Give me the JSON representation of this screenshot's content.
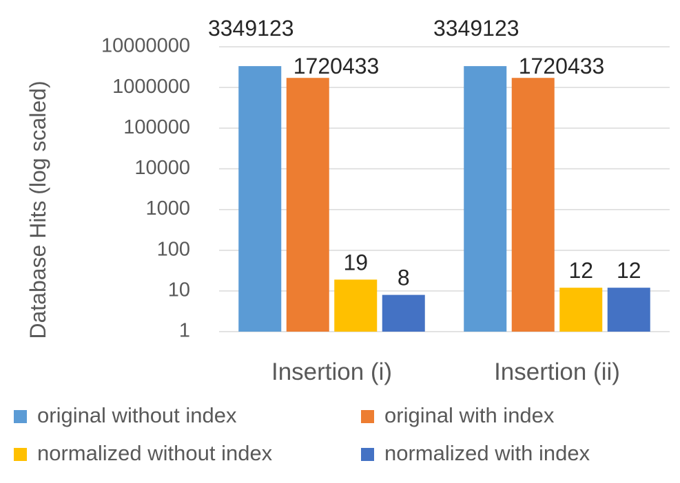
{
  "chart_data": {
    "type": "bar",
    "ylabel": "Database Hits (log scaled)",
    "yscale": "log",
    "ylim": [
      1,
      10000000
    ],
    "yticks": [
      "1",
      "10",
      "100",
      "1000",
      "10000",
      "100000",
      "1000000",
      "10000000"
    ],
    "grid": true,
    "legend_position": "bottom",
    "categories": [
      "Insertion (i)",
      "Insertion (ii)"
    ],
    "series": [
      {
        "name": "original without index",
        "color": "#5b9bd5",
        "values": [
          3349123,
          3349123
        ],
        "labels": [
          "3349123",
          "3349123"
        ]
      },
      {
        "name": "original with index",
        "color": "#ed7d31",
        "values": [
          1720433,
          1720433
        ],
        "labels": [
          "1720433",
          "1720433"
        ]
      },
      {
        "name": "normalized without index",
        "color": "#ffc000",
        "values": [
          19,
          12
        ],
        "labels": [
          "19",
          "12"
        ]
      },
      {
        "name": "normalized with index",
        "color": "#4472c4",
        "values": [
          8,
          12
        ],
        "labels": [
          "8",
          "12"
        ]
      }
    ]
  }
}
